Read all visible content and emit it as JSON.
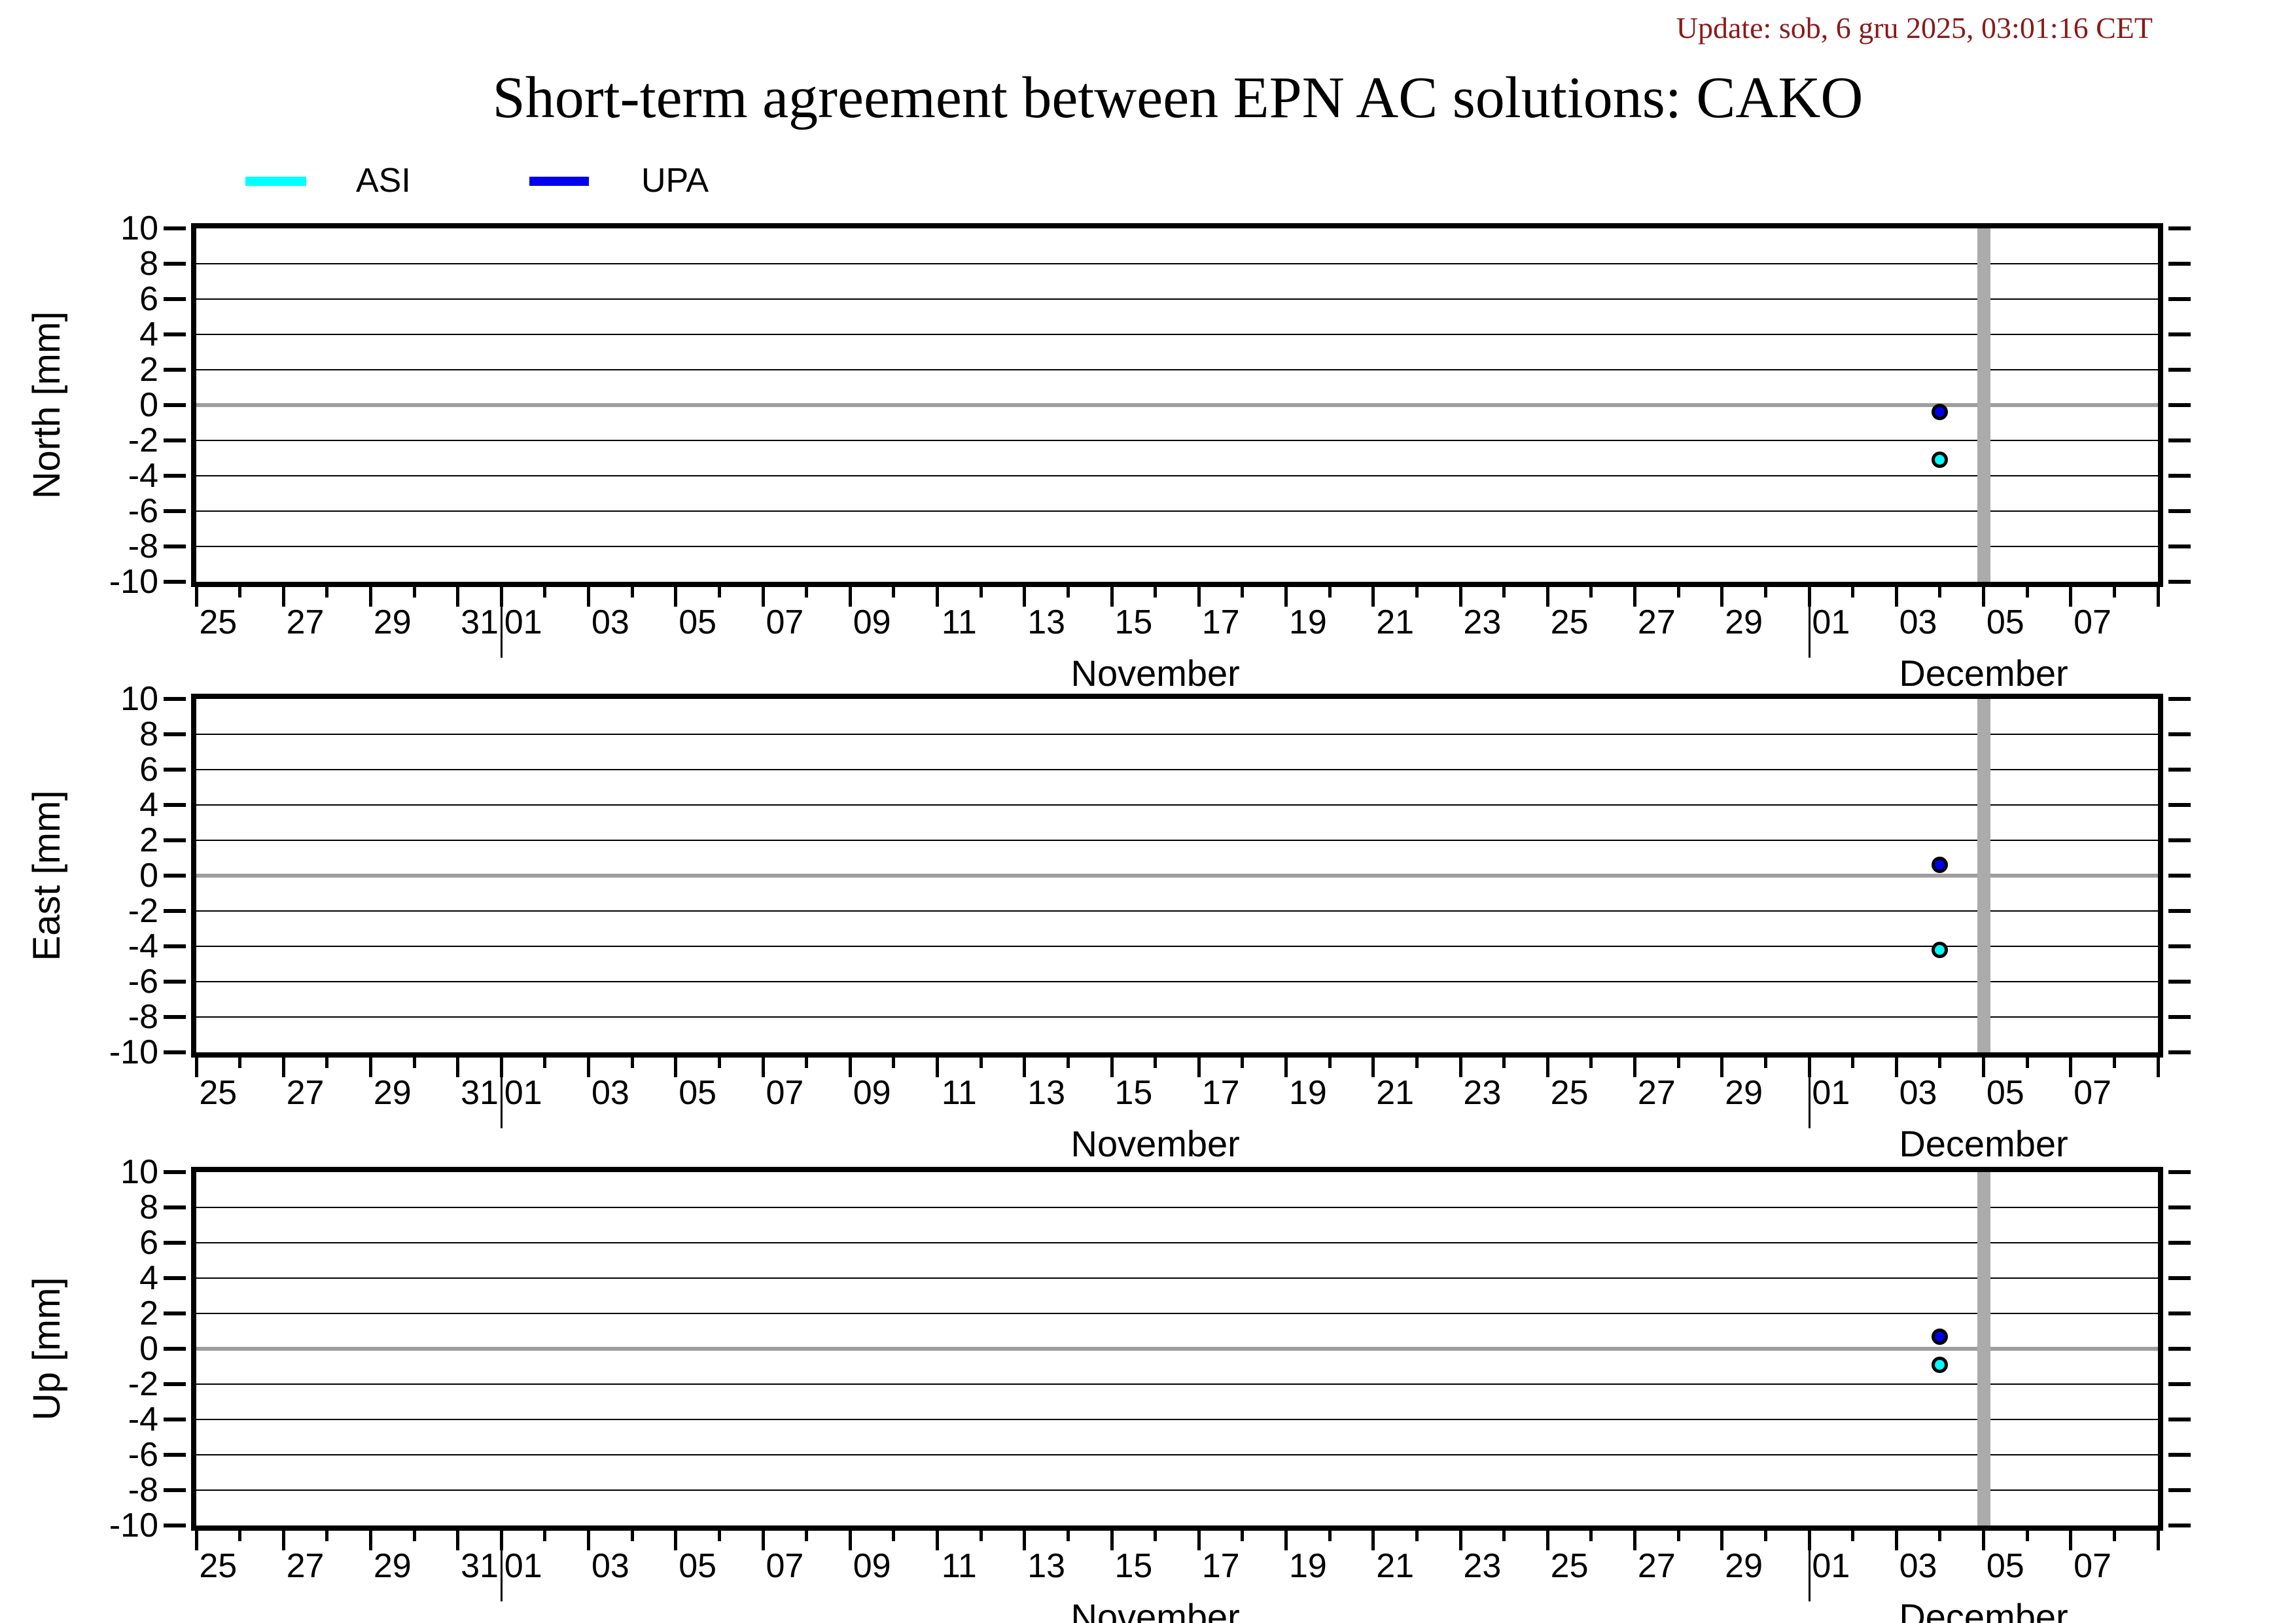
{
  "title": "Short-term agreement between EPN AC solutions: CAKO",
  "update_text": "Update: sob, 6 gru 2025, 03:01:16 CET",
  "colors": {
    "title": "#000000",
    "update_text": "#8b1a1a",
    "asi": "#00ffff",
    "upa": "#0000ee",
    "zero_line": "#9e9e9e",
    "now_bar": "#ababab",
    "grid": "#000000"
  },
  "legend": {
    "items": [
      {
        "label": "ASI",
        "color": "#00ffff"
      },
      {
        "label": "UPA",
        "color": "#0000ee"
      }
    ]
  },
  "chart_data": {
    "type": "scatter",
    "ylim": [
      -10,
      10
    ],
    "ytick_step": 2,
    "ytick_labels": [
      "10",
      "8",
      "6",
      "4",
      "2",
      "0",
      "-2",
      "-4",
      "-6",
      "-8",
      "-10"
    ],
    "grid": "horizontal-on",
    "x_axis": {
      "start_date": "Oct 25",
      "end_date": "Dec 09",
      "total_days": 45,
      "minor_tick_every_day": true,
      "tick_labels": [
        {
          "text": "25",
          "day": 0.5
        },
        {
          "text": "27",
          "day": 2.5
        },
        {
          "text": "29",
          "day": 4.5
        },
        {
          "text": "31",
          "day": 6.5
        },
        {
          "text": "01",
          "day": 7.5
        },
        {
          "text": "03",
          "day": 9.5
        },
        {
          "text": "05",
          "day": 11.5
        },
        {
          "text": "07",
          "day": 13.5
        },
        {
          "text": "09",
          "day": 15.5
        },
        {
          "text": "11",
          "day": 17.5
        },
        {
          "text": "13",
          "day": 19.5
        },
        {
          "text": "15",
          "day": 21.5
        },
        {
          "text": "17",
          "day": 23.5
        },
        {
          "text": "19",
          "day": 25.5
        },
        {
          "text": "21",
          "day": 27.5
        },
        {
          "text": "23",
          "day": 29.5
        },
        {
          "text": "25",
          "day": 31.5
        },
        {
          "text": "27",
          "day": 33.5
        },
        {
          "text": "29",
          "day": 35.5
        },
        {
          "text": "01",
          "day": 37.5
        },
        {
          "text": "03",
          "day": 39.5
        },
        {
          "text": "05",
          "day": 41.5
        },
        {
          "text": "07",
          "day": 43.5
        }
      ],
      "month_labels": [
        {
          "text": "November",
          "day": 22
        },
        {
          "text": "December",
          "day": 41
        }
      ],
      "month_boundary_days": [
        7,
        37
      ]
    },
    "now_marker": {
      "day": 41,
      "date_label": "Dec 05",
      "width_days": 0.3
    },
    "panels": [
      {
        "ylabel": "North [mm]",
        "series": [
          {
            "name": "ASI",
            "color": "#00ffff",
            "points": [
              {
                "date_label": "Dec 04",
                "day": 40,
                "value": -3.1
              }
            ]
          },
          {
            "name": "UPA",
            "color": "#0000ee",
            "points": [
              {
                "date_label": "Dec 04",
                "day": 40,
                "value": -0.4
              }
            ]
          }
        ]
      },
      {
        "ylabel": "East [mm]",
        "series": [
          {
            "name": "ASI",
            "color": "#00ffff",
            "points": [
              {
                "date_label": "Dec 04",
                "day": 40,
                "value": -4.2
              }
            ]
          },
          {
            "name": "UPA",
            "color": "#0000ee",
            "points": [
              {
                "date_label": "Dec 04",
                "day": 40,
                "value": 0.6
              }
            ]
          }
        ]
      },
      {
        "ylabel": "Up [mm]",
        "series": [
          {
            "name": "ASI",
            "color": "#00ffff",
            "points": [
              {
                "date_label": "Dec 04",
                "day": 40,
                "value": -0.9
              }
            ]
          },
          {
            "name": "UPA",
            "color": "#0000ee",
            "points": [
              {
                "date_label": "Dec 04",
                "day": 40,
                "value": 0.7
              }
            ]
          }
        ]
      }
    ]
  }
}
